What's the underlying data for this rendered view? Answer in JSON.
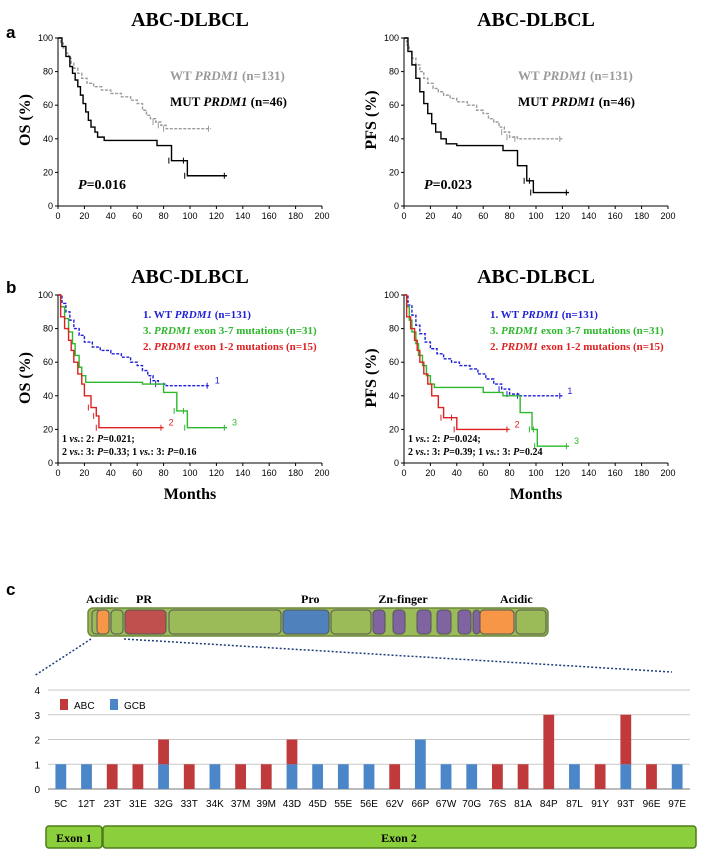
{
  "colors": {
    "wt_gray": "#9a9a9a",
    "mut_black": "#000000",
    "blue": "#1f1fd6",
    "green": "#2db82d",
    "red": "#e02020",
    "abc": "#c0393b",
    "gcb": "#4a86c8",
    "exon_green": "#8ccf3c",
    "domain_green": "#9bbb59",
    "pr_red": "#c0504d",
    "pro_blue": "#4f81bd",
    "acidic_orange": "#f79646",
    "zn_purple": "#8064a2"
  },
  "panels": {
    "a": "a",
    "b": "b",
    "c": "c"
  },
  "axes": {
    "x_ticks": [
      0,
      20,
      40,
      60,
      80,
      100,
      120,
      140,
      160,
      180,
      200
    ],
    "y_ticks": [
      0,
      20,
      40,
      60,
      80,
      100
    ],
    "x_title": "Months"
  },
  "chart_data": [
    {
      "id": "a_os",
      "type": "line",
      "title": "ABC-DLBCL",
      "ylabel": "OS (%)",
      "xlim": [
        0,
        200
      ],
      "ylim": [
        0,
        100
      ],
      "legend": [
        {
          "prefix": "WT ",
          "gene": "PRDM1",
          "suffix": " (n=131)",
          "color": "#9a9a9a"
        },
        {
          "prefix": "MUT ",
          "gene": "PRDM1",
          "suffix": " (n=46)",
          "color": "#000000"
        }
      ],
      "p_letter": "P",
      "p_value": "=0.016",
      "series": [
        {
          "name": "WT PRDM1",
          "color": "#9a9a9a",
          "dash": true,
          "points": [
            [
              0,
              100
            ],
            [
              2,
              97
            ],
            [
              4,
              94
            ],
            [
              6,
              91
            ],
            [
              8,
              88
            ],
            [
              10,
              85
            ],
            [
              12,
              82
            ],
            [
              15,
              79
            ],
            [
              18,
              76
            ],
            [
              22,
              73
            ],
            [
              27,
              71
            ],
            [
              33,
              69
            ],
            [
              40,
              67
            ],
            [
              48,
              65
            ],
            [
              55,
              63
            ],
            [
              60,
              61
            ],
            [
              64,
              57
            ],
            [
              67,
              54
            ],
            [
              70,
              52
            ],
            [
              74,
              50
            ],
            [
              78,
              48
            ],
            [
              82,
              46
            ],
            [
              116,
              46
            ]
          ]
        },
        {
          "name": "MUT PRDM1",
          "color": "#000000",
          "dash": false,
          "points": [
            [
              0,
              100
            ],
            [
              3,
              95
            ],
            [
              6,
              89
            ],
            [
              9,
              83
            ],
            [
              11,
              79
            ],
            [
              13,
              75
            ],
            [
              15,
              71
            ],
            [
              17,
              66
            ],
            [
              19,
              61
            ],
            [
              21,
              56
            ],
            [
              23,
              51
            ],
            [
              25,
              47
            ],
            [
              28,
              44
            ],
            [
              30,
              41
            ],
            [
              35,
              39
            ],
            [
              70,
              39
            ],
            [
              75,
              36
            ],
            [
              85,
              36
            ],
            [
              86,
              27
            ],
            [
              97,
              27
            ],
            [
              98,
              18
            ],
            [
              128,
              18
            ]
          ]
        }
      ]
    },
    {
      "id": "a_pfs",
      "type": "line",
      "title": "ABC-DLBCL",
      "ylabel": "PFS (%)",
      "xlim": [
        0,
        200
      ],
      "ylim": [
        0,
        100
      ],
      "legend": [
        {
          "prefix": "WT ",
          "gene": "PRDM1",
          "suffix": " (n=131)",
          "color": "#9a9a9a"
        },
        {
          "prefix": "MUT ",
          "gene": "PRDM1",
          "suffix": " (n=46)",
          "color": "#000000"
        }
      ],
      "p_letter": "P",
      "p_value": "=0.023",
      "series": [
        {
          "name": "WT PRDM1",
          "color": "#9a9a9a",
          "dash": true,
          "points": [
            [
              0,
              100
            ],
            [
              2,
              96
            ],
            [
              4,
              92
            ],
            [
              6,
              88
            ],
            [
              9,
              84
            ],
            [
              12,
              80
            ],
            [
              15,
              76
            ],
            [
              18,
              73
            ],
            [
              22,
              70
            ],
            [
              26,
              68
            ],
            [
              30,
              66
            ],
            [
              35,
              64
            ],
            [
              40,
              62
            ],
            [
              48,
              60
            ],
            [
              55,
              57
            ],
            [
              60,
              55
            ],
            [
              64,
              52
            ],
            [
              68,
              50
            ],
            [
              72,
              47
            ],
            [
              76,
              44
            ],
            [
              80,
              41
            ],
            [
              86,
              40
            ],
            [
              120,
              40
            ]
          ]
        },
        {
          "name": "MUT PRDM1",
          "color": "#000000",
          "dash": false,
          "points": [
            [
              0,
              100
            ],
            [
              3,
              92
            ],
            [
              6,
              84
            ],
            [
              9,
              76
            ],
            [
              12,
              68
            ],
            [
              15,
              61
            ],
            [
              18,
              55
            ],
            [
              21,
              49
            ],
            [
              24,
              44
            ],
            [
              28,
              40
            ],
            [
              32,
              37
            ],
            [
              40,
              36
            ],
            [
              72,
              36
            ],
            [
              75,
              33
            ],
            [
              85,
              33
            ],
            [
              86,
              24
            ],
            [
              92,
              24
            ],
            [
              93,
              15
            ],
            [
              97,
              15
            ],
            [
              98,
              8
            ],
            [
              125,
              8
            ]
          ]
        }
      ]
    },
    {
      "id": "b_os",
      "type": "line",
      "title": "ABC-DLBCL",
      "ylabel": "OS (%)",
      "xlabel": "Months",
      "xlim": [
        0,
        200
      ],
      "ylim": [
        0,
        100
      ],
      "legend": [
        {
          "prefix": "1. WT ",
          "gene": "PRDM1",
          "suffix": " (n=131)",
          "color": "#1f1fd6"
        },
        {
          "prefix": "3. ",
          "gene": "PRDM1",
          "suffix": " exon 3-7 mutations (n=31)",
          "color": "#2db82d"
        },
        {
          "prefix": "2. ",
          "gene": "PRDM1",
          "suffix": " exon 1-2 mutations (n=15)",
          "color": "#e02020"
        }
      ],
      "p_lines": [
        [
          "1 ",
          "vs.",
          ": 2: ",
          "P",
          "=0.021;"
        ],
        [
          "2 ",
          "vs.",
          ": 3: ",
          "P",
          "=0.33; 1 ",
          "vs.",
          ": 3: ",
          "P",
          "=0.16"
        ]
      ],
      "series": [
        {
          "name": "1",
          "label": "1",
          "color": "#1f1fd6",
          "dash": true,
          "points": [
            [
              0,
              100
            ],
            [
              3,
              95
            ],
            [
              6,
              90
            ],
            [
              9,
              85
            ],
            [
              12,
              80
            ],
            [
              16,
              76
            ],
            [
              20,
              72
            ],
            [
              26,
              69
            ],
            [
              32,
              67
            ],
            [
              40,
              65
            ],
            [
              48,
              63
            ],
            [
              55,
              60
            ],
            [
              60,
              58
            ],
            [
              64,
              55
            ],
            [
              68,
              52
            ],
            [
              72,
              49
            ],
            [
              76,
              47
            ],
            [
              82,
              46
            ],
            [
              115,
              46
            ]
          ]
        },
        {
          "name": "3",
          "label": "3",
          "color": "#2db82d",
          "dash": false,
          "points": [
            [
              0,
              100
            ],
            [
              2,
              93
            ],
            [
              5,
              86
            ],
            [
              8,
              78
            ],
            [
              11,
              71
            ],
            [
              13,
              64
            ],
            [
              16,
              57
            ],
            [
              18,
              52
            ],
            [
              21,
              48
            ],
            [
              45,
              48
            ],
            [
              60,
              48
            ],
            [
              64,
              47
            ],
            [
              78,
              47
            ],
            [
              80,
              42
            ],
            [
              88,
              42
            ],
            [
              90,
              31
            ],
            [
              97,
              31
            ],
            [
              98,
              21
            ],
            [
              128,
              21
            ]
          ]
        },
        {
          "name": "2",
          "label": "2",
          "color": "#e02020",
          "dash": false,
          "points": [
            [
              0,
              100
            ],
            [
              2,
              87
            ],
            [
              5,
              80
            ],
            [
              8,
              73
            ],
            [
              10,
              67
            ],
            [
              12,
              60
            ],
            [
              15,
              53
            ],
            [
              18,
              47
            ],
            [
              20,
              40
            ],
            [
              25,
              33
            ],
            [
              29,
              28
            ],
            [
              31,
              21
            ],
            [
              80,
              21
            ]
          ]
        }
      ]
    },
    {
      "id": "b_pfs",
      "type": "line",
      "title": "ABC-DLBCL",
      "ylabel": "PFS (%)",
      "xlabel": "Months",
      "xlim": [
        0,
        200
      ],
      "ylim": [
        0,
        100
      ],
      "legend": [
        {
          "prefix": "1. WT ",
          "gene": "PRDM1",
          "suffix": " (n=131)",
          "color": "#1f1fd6"
        },
        {
          "prefix": "3. ",
          "gene": "PRDM1",
          "suffix": " exon 3-7 mutations (n=31)",
          "color": "#2db82d"
        },
        {
          "prefix": "2. ",
          "gene": "PRDM1",
          "suffix": " exon 1-2 mutations (n=15)",
          "color": "#e02020"
        }
      ],
      "p_lines": [
        [
          "1 ",
          "vs.",
          ": 2: ",
          "P",
          "=0.024;"
        ],
        [
          "2 ",
          "vs.",
          ": 3: ",
          "P",
          "=0.39; 1 ",
          "vs.",
          ": 3: ",
          "P",
          "=0.24"
        ]
      ],
      "series": [
        {
          "name": "1",
          "label": "1",
          "color": "#1f1fd6",
          "dash": true,
          "points": [
            [
              0,
              100
            ],
            [
              3,
              94
            ],
            [
              6,
              88
            ],
            [
              9,
              82
            ],
            [
              12,
              77
            ],
            [
              16,
              72
            ],
            [
              20,
              68
            ],
            [
              25,
              65
            ],
            [
              30,
              62
            ],
            [
              36,
              60
            ],
            [
              42,
              58
            ],
            [
              50,
              56
            ],
            [
              56,
              53
            ],
            [
              62,
              50
            ],
            [
              68,
              47
            ],
            [
              74,
              44
            ],
            [
              80,
              41
            ],
            [
              88,
              40
            ],
            [
              120,
              40
            ]
          ]
        },
        {
          "name": "3",
          "label": "3",
          "color": "#2db82d",
          "dash": false,
          "points": [
            [
              0,
              100
            ],
            [
              2,
              93
            ],
            [
              4,
              85
            ],
            [
              6,
              78
            ],
            [
              9,
              71
            ],
            [
              11,
              64
            ],
            [
              14,
              58
            ],
            [
              17,
              52
            ],
            [
              20,
              47
            ],
            [
              23,
              45
            ],
            [
              50,
              45
            ],
            [
              56,
              45
            ],
            [
              60,
              42
            ],
            [
              72,
              42
            ],
            [
              75,
              40
            ],
            [
              85,
              40
            ],
            [
              88,
              30
            ],
            [
              95,
              30
            ],
            [
              97,
              20
            ],
            [
              100,
              20
            ],
            [
              101,
              10
            ],
            [
              125,
              10
            ]
          ]
        },
        {
          "name": "2",
          "label": "2",
          "color": "#e02020",
          "dash": false,
          "points": [
            [
              0,
              100
            ],
            [
              2,
              87
            ],
            [
              5,
              80
            ],
            [
              8,
              73
            ],
            [
              10,
              67
            ],
            [
              12,
              60
            ],
            [
              15,
              53
            ],
            [
              18,
              47
            ],
            [
              21,
              40
            ],
            [
              26,
              33
            ],
            [
              30,
              27
            ],
            [
              38,
              27
            ],
            [
              40,
              20
            ],
            [
              80,
              20
            ]
          ]
        }
      ]
    },
    {
      "id": "c_bar",
      "type": "bar",
      "stacked": true,
      "ylim": [
        0,
        4
      ],
      "y_ticks": [
        0,
        1,
        2,
        3,
        4
      ],
      "categories": [
        "5C",
        "12T",
        "23T",
        "31E",
        "32G",
        "33T",
        "34K",
        "37M",
        "39M",
        "43D",
        "45D",
        "55E",
        "56E",
        "62V",
        "66P",
        "67W",
        "70G",
        "76S",
        "81A",
        "84P",
        "87L",
        "91Y",
        "93T",
        "96E",
        "97E"
      ],
      "series": [
        {
          "name": "ABC",
          "color": "#c0393b",
          "values": [
            0,
            0,
            1,
            1,
            1,
            1,
            0,
            1,
            1,
            1,
            0,
            0,
            0,
            1,
            0,
            0,
            0,
            1,
            1,
            3,
            0,
            1,
            2,
            1,
            0
          ]
        },
        {
          "name": "GCB",
          "color": "#4a86c8",
          "values": [
            1,
            1,
            0,
            0,
            1,
            0,
            1,
            0,
            0,
            1,
            1,
            1,
            1,
            0,
            2,
            1,
            1,
            0,
            0,
            0,
            1,
            0,
            1,
            0,
            1
          ]
        }
      ]
    }
  ],
  "protein_domains": [
    "Acidic",
    "PR",
    "Pro",
    "Zn-finger",
    "Acidic"
  ],
  "exons": [
    "Exon 1",
    "Exon 2"
  ]
}
